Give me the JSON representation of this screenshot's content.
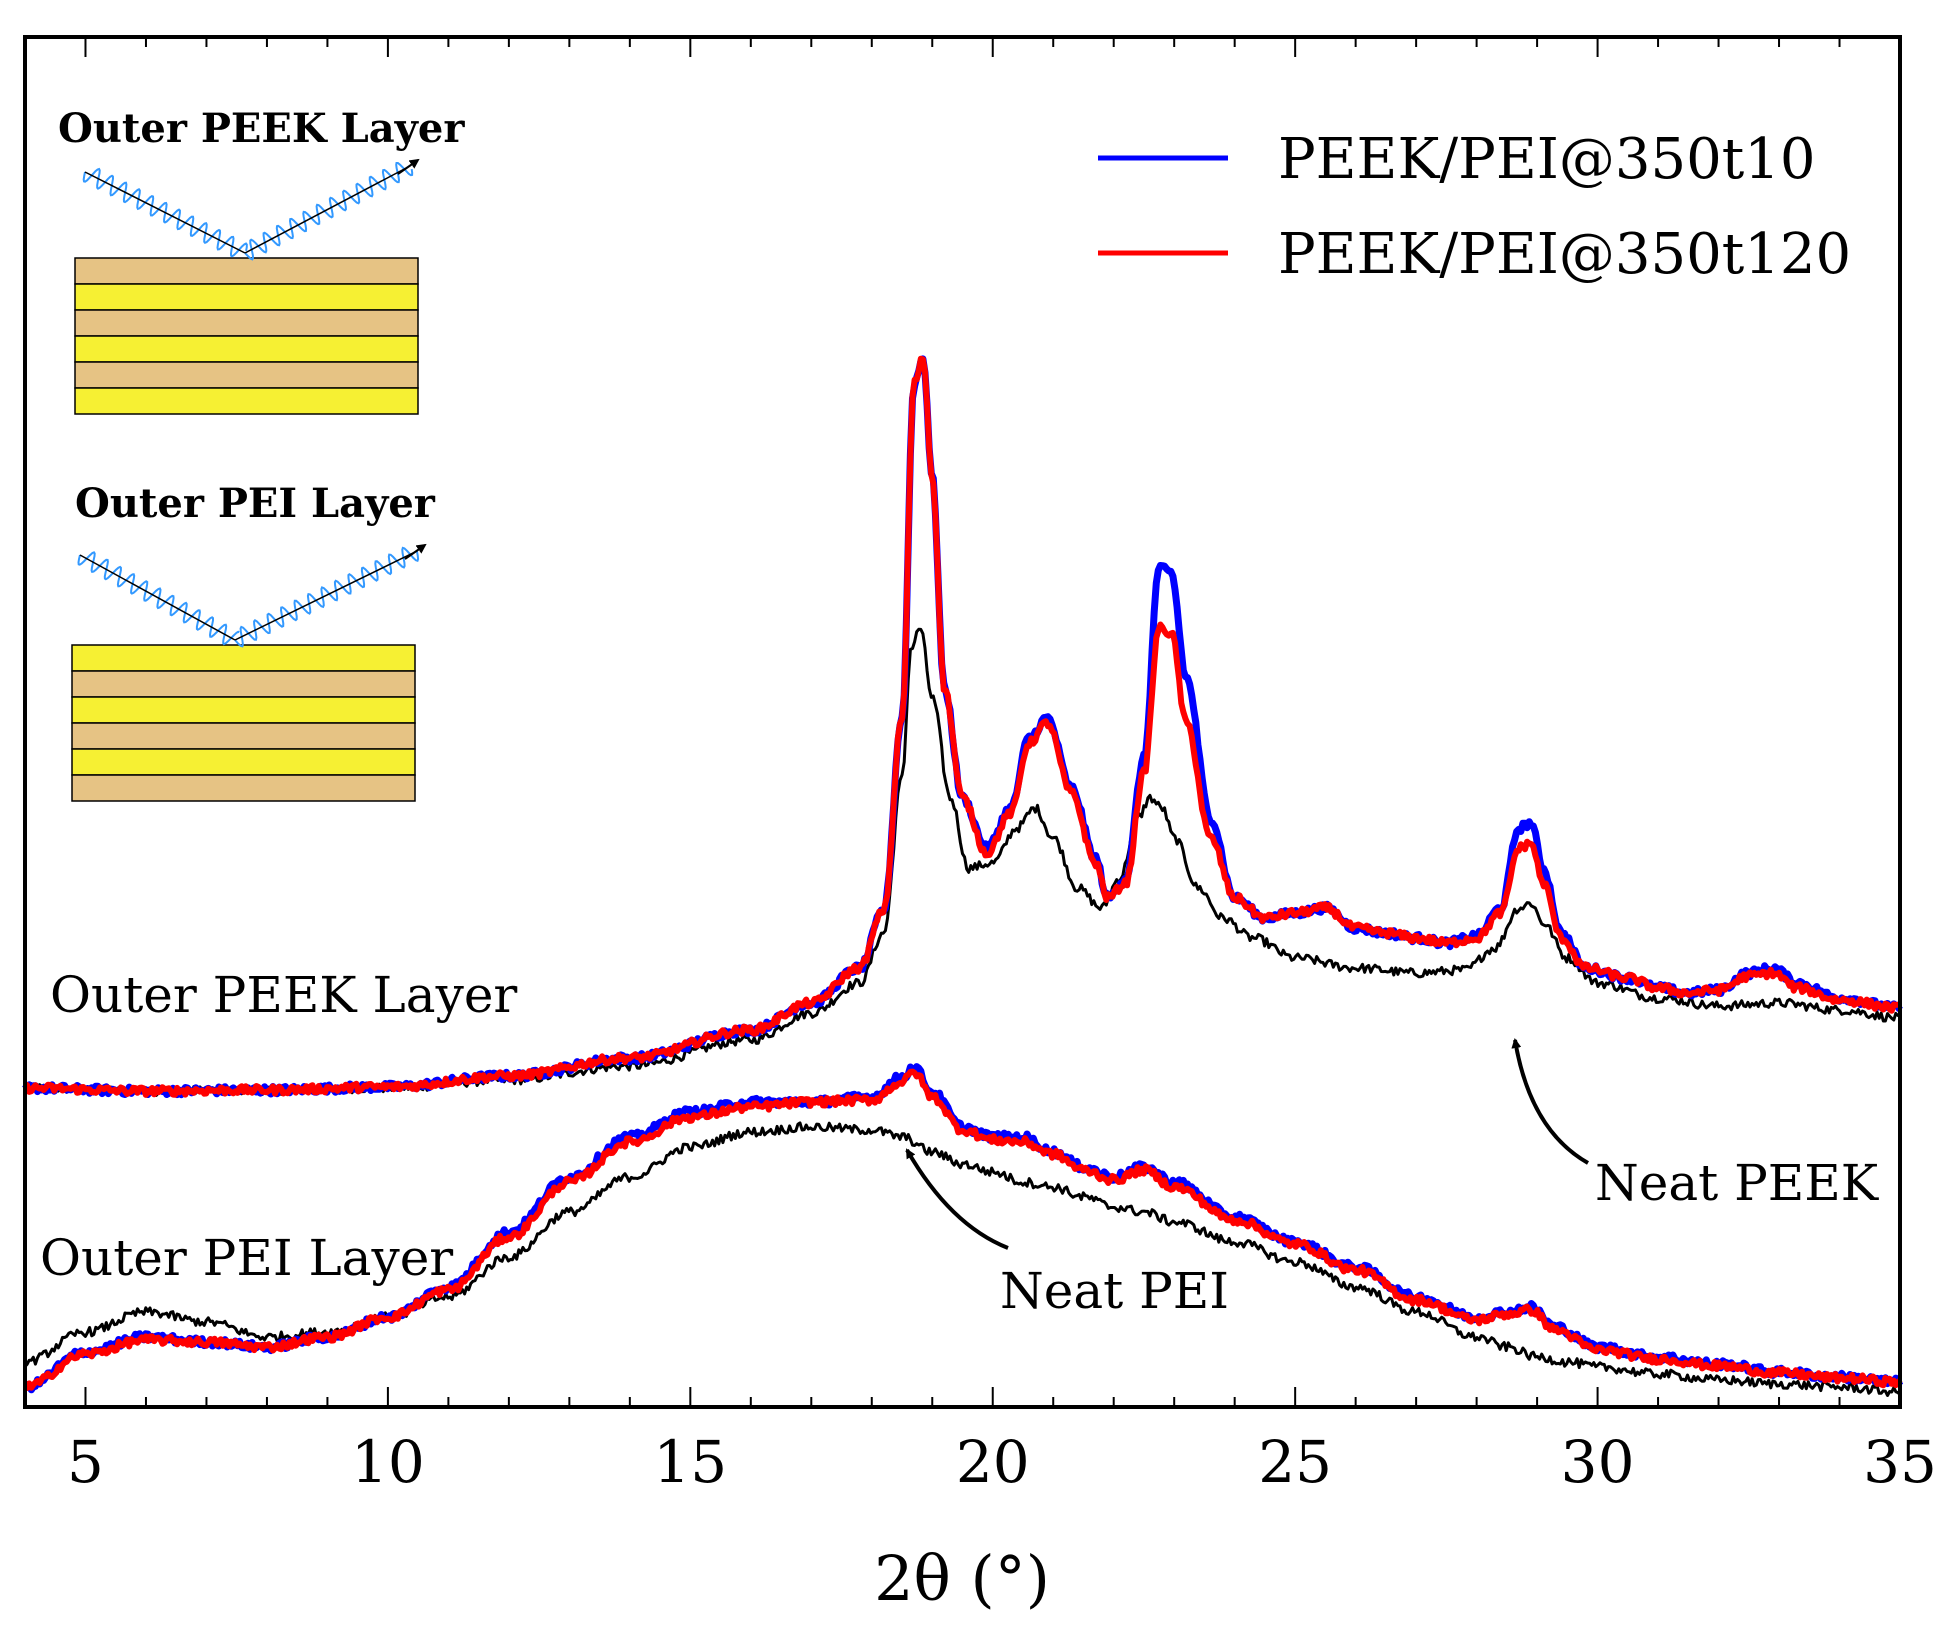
{
  "chart_data": {
    "type": "line",
    "xlabel": "2θ (°)",
    "ylabel": "",
    "xlim": [
      4,
      35
    ],
    "xticks": [
      5,
      10,
      15,
      20,
      25,
      30,
      35
    ],
    "legend": {
      "placement": "top-right",
      "entries": [
        {
          "label": "PEEK/PEI@350t10",
          "color": "#0000ff"
        },
        {
          "label": "PEEK/PEI@350t120",
          "color": "#ff0000"
        }
      ]
    },
    "groups": [
      {
        "label": "Outer PEEK Layer",
        "series": [
          {
            "color": "#0000ff",
            "x": [
              4,
              6,
              8,
              10,
              12,
              14,
              16,
              17,
              17.8,
              18.2,
              18.5,
              18.7,
              18.85,
              19.0,
              19.2,
              19.5,
              19.9,
              20.3,
              20.6,
              20.9,
              21.3,
              21.7,
              21.9,
              22.2,
              22.5,
              22.75,
              22.95,
              23.2,
              23.6,
              24.0,
              24.5,
              25,
              25.5,
              26,
              26.5,
              27,
              27.5,
              28,
              28.4,
              28.7,
              28.9,
              29.1,
              29.4,
              29.8,
              30.5,
              31,
              31.5,
              32,
              32.5,
              32.9,
              33.3,
              34,
              35
            ],
            "y": [
              30,
              27,
              28,
              31,
              42,
              60,
              88,
              115,
              150,
              208,
              400,
              735,
              760,
              640,
              430,
              320,
              270,
              310,
              380,
              400,
              330,
              260,
              220,
              240,
              360,
              550,
              545,
              440,
              300,
              220,
              200,
              205,
              210,
              190,
              185,
              180,
              175,
              182,
              210,
              290,
              295,
              250,
              185,
              150,
              140,
              130,
              125,
              128,
              145,
              150,
              135,
              120,
              110
            ]
          },
          {
            "color": "#ff0000",
            "x": [
              4,
              6,
              8,
              10,
              12,
              14,
              16,
              17,
              17.8,
              18.2,
              18.5,
              18.7,
              18.85,
              19.0,
              19.2,
              19.5,
              19.9,
              20.3,
              20.6,
              20.9,
              21.3,
              21.7,
              21.9,
              22.2,
              22.5,
              22.75,
              22.95,
              23.2,
              23.6,
              24.0,
              24.5,
              25,
              25.5,
              26,
              26.5,
              27,
              27.5,
              28,
              28.4,
              28.7,
              28.9,
              29.1,
              29.4,
              29.8,
              30.5,
              31,
              31.5,
              32,
              32.5,
              32.9,
              33.3,
              34,
              35
            ],
            "y": [
              30,
              27,
              28,
              31,
              42,
              60,
              88,
              115,
              150,
              208,
              400,
              735,
              760,
              640,
              430,
              320,
              265,
              305,
              375,
              395,
              325,
              255,
              220,
              235,
              345,
              490,
              485,
              395,
              280,
              220,
              200,
              205,
              210,
              190,
              185,
              180,
              175,
              180,
              205,
              270,
              275,
              235,
              180,
              150,
              140,
              130,
              125,
              128,
              142,
              145,
              130,
              118,
              110
            ]
          },
          {
            "color": "#000000",
            "x": [
              4,
              6,
              8,
              10,
              12,
              14,
              16,
              17,
              17.8,
              18.2,
              18.5,
              18.65,
              18.8,
              19.0,
              19.3,
              19.6,
              20.0,
              20.4,
              20.7,
              21.0,
              21.4,
              21.8,
              22.1,
              22.4,
              22.6,
              22.8,
              23.0,
              23.4,
              23.8,
              24.3,
              25,
              26,
              27,
              27.8,
              28.3,
              28.7,
              28.9,
              29.1,
              29.5,
              30,
              31,
              32,
              33,
              34,
              35
            ],
            "y": [
              30,
              27,
              28,
              30,
              38,
              52,
              78,
              105,
              135,
              185,
              340,
              470,
              490,
              420,
              320,
              250,
              255,
              290,
              310,
              280,
              230,
              210,
              240,
              300,
              320,
              310,
              280,
              230,
              200,
              180,
              160,
              150,
              145,
              148,
              170,
              210,
              215,
              195,
              160,
              135,
              120,
              112,
              115,
              108,
              100
            ]
          }
        ]
      },
      {
        "label": "Outer PEI Layer",
        "series": [
          {
            "color": "#0000ff",
            "x": [
              4,
              5,
              6,
              7,
              8,
              9,
              10,
              11,
              12,
              13,
              14,
              15,
              16,
              17,
              18,
              18.5,
              18.7,
              19,
              19.5,
              20,
              20.5,
              21,
              21.5,
              22,
              22.5,
              23,
              24,
              25,
              26,
              27,
              28,
              28.5,
              28.9,
              29.3,
              30,
              31,
              32,
              33,
              34,
              35
            ],
            "y": [
              5,
              40,
              55,
              50,
              45,
              55,
              75,
              105,
              160,
              215,
              255,
              280,
              290,
              290,
              295,
              315,
              325,
              300,
              265,
              255,
              255,
              240,
              225,
              215,
              225,
              210,
              175,
              150,
              125,
              95,
              75,
              80,
              85,
              65,
              45,
              35,
              28,
              20,
              15,
              10
            ]
          },
          {
            "color": "#ff0000",
            "x": [
              4,
              5,
              6,
              7,
              8,
              9,
              10,
              11,
              12,
              13,
              14,
              15,
              16,
              17,
              18,
              18.5,
              18.7,
              19,
              19.5,
              20,
              20.5,
              21,
              21.5,
              22,
              22.5,
              23,
              24,
              25,
              26,
              27,
              28,
              28.5,
              28.9,
              29.3,
              30,
              31,
              32,
              33,
              34,
              35
            ],
            "y": [
              5,
              38,
              52,
              50,
              45,
              55,
              75,
              102,
              155,
              210,
              250,
              275,
              285,
              290,
              292,
              310,
              320,
              295,
              262,
              252,
              250,
              238,
              222,
              212,
              222,
              205,
              172,
              148,
              122,
              92,
              72,
              78,
              82,
              62,
              42,
              33,
              26,
              19,
              14,
              10
            ]
          },
          {
            "color": "#000000",
            "x": [
              4,
              5,
              6,
              7,
              8,
              9,
              10,
              11,
              12,
              13,
              14,
              15,
              16,
              17,
              18,
              18.5,
              19,
              19.5,
              20,
              20.5,
              21,
              21.5,
              22,
              22.5,
              23,
              24,
              25,
              26,
              27,
              28,
              28.5,
              29,
              29.5,
              30,
              31,
              32,
              33,
              34,
              35
            ],
            "y": [
              30,
              60,
              80,
              70,
              55,
              60,
              75,
              95,
              135,
              180,
              215,
              245,
              260,
              265,
              262,
              255,
              240,
              228,
              220,
              210,
              205,
              195,
              185,
              180,
              170,
              150,
              130,
              105,
              80,
              55,
              45,
              35,
              30,
              25,
              18,
              12,
              8,
              5,
              0
            ]
          }
        ]
      }
    ],
    "annotations": [
      {
        "text": "Outer PEEK Layer"
      },
      {
        "text": "Outer PEI Layer"
      },
      {
        "text": "Neat PEEK"
      },
      {
        "text": "Neat PEI"
      }
    ],
    "insets": [
      {
        "title": "Outer PEEK Layer",
        "layers": [
          "#e6c384",
          "#f6f033",
          "#e6c384",
          "#f6f033",
          "#e6c384",
          "#f6f033"
        ]
      },
      {
        "title": "Outer PEI Layer",
        "layers": [
          "#f6f033",
          "#e6c384",
          "#f6f033",
          "#e6c384",
          "#f6f033",
          "#e6c384"
        ]
      }
    ]
  }
}
